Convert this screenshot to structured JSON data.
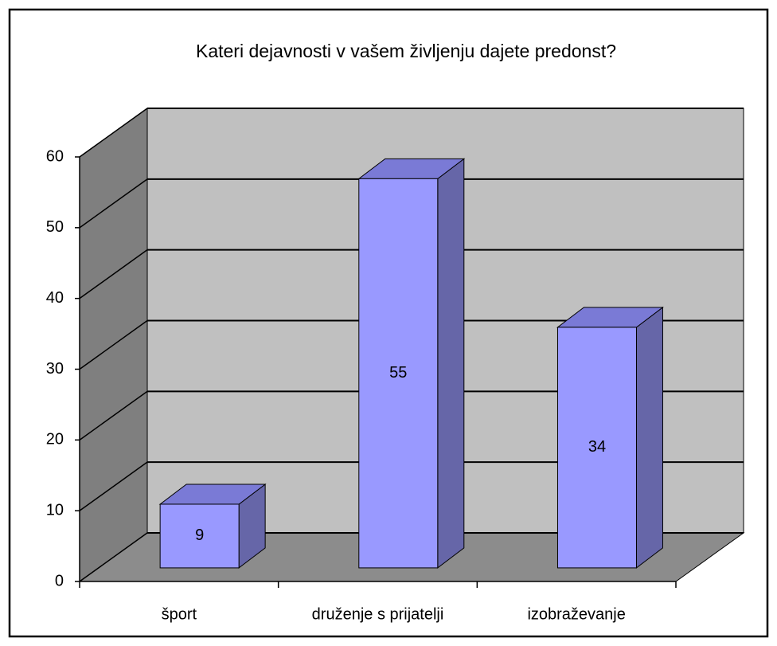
{
  "chart_data": {
    "type": "bar3d",
    "title": "Kateri dejavnosti v vašem življenju dajete predonst?",
    "categories": [
      "šport",
      "druženje s prijatelji",
      "izobraževanje"
    ],
    "values": [
      9,
      55,
      34
    ],
    "color": "#9999ff",
    "ylim": [
      0,
      60
    ],
    "yticks": [
      0,
      10,
      20,
      30,
      40,
      50,
      60
    ],
    "grid": true
  }
}
